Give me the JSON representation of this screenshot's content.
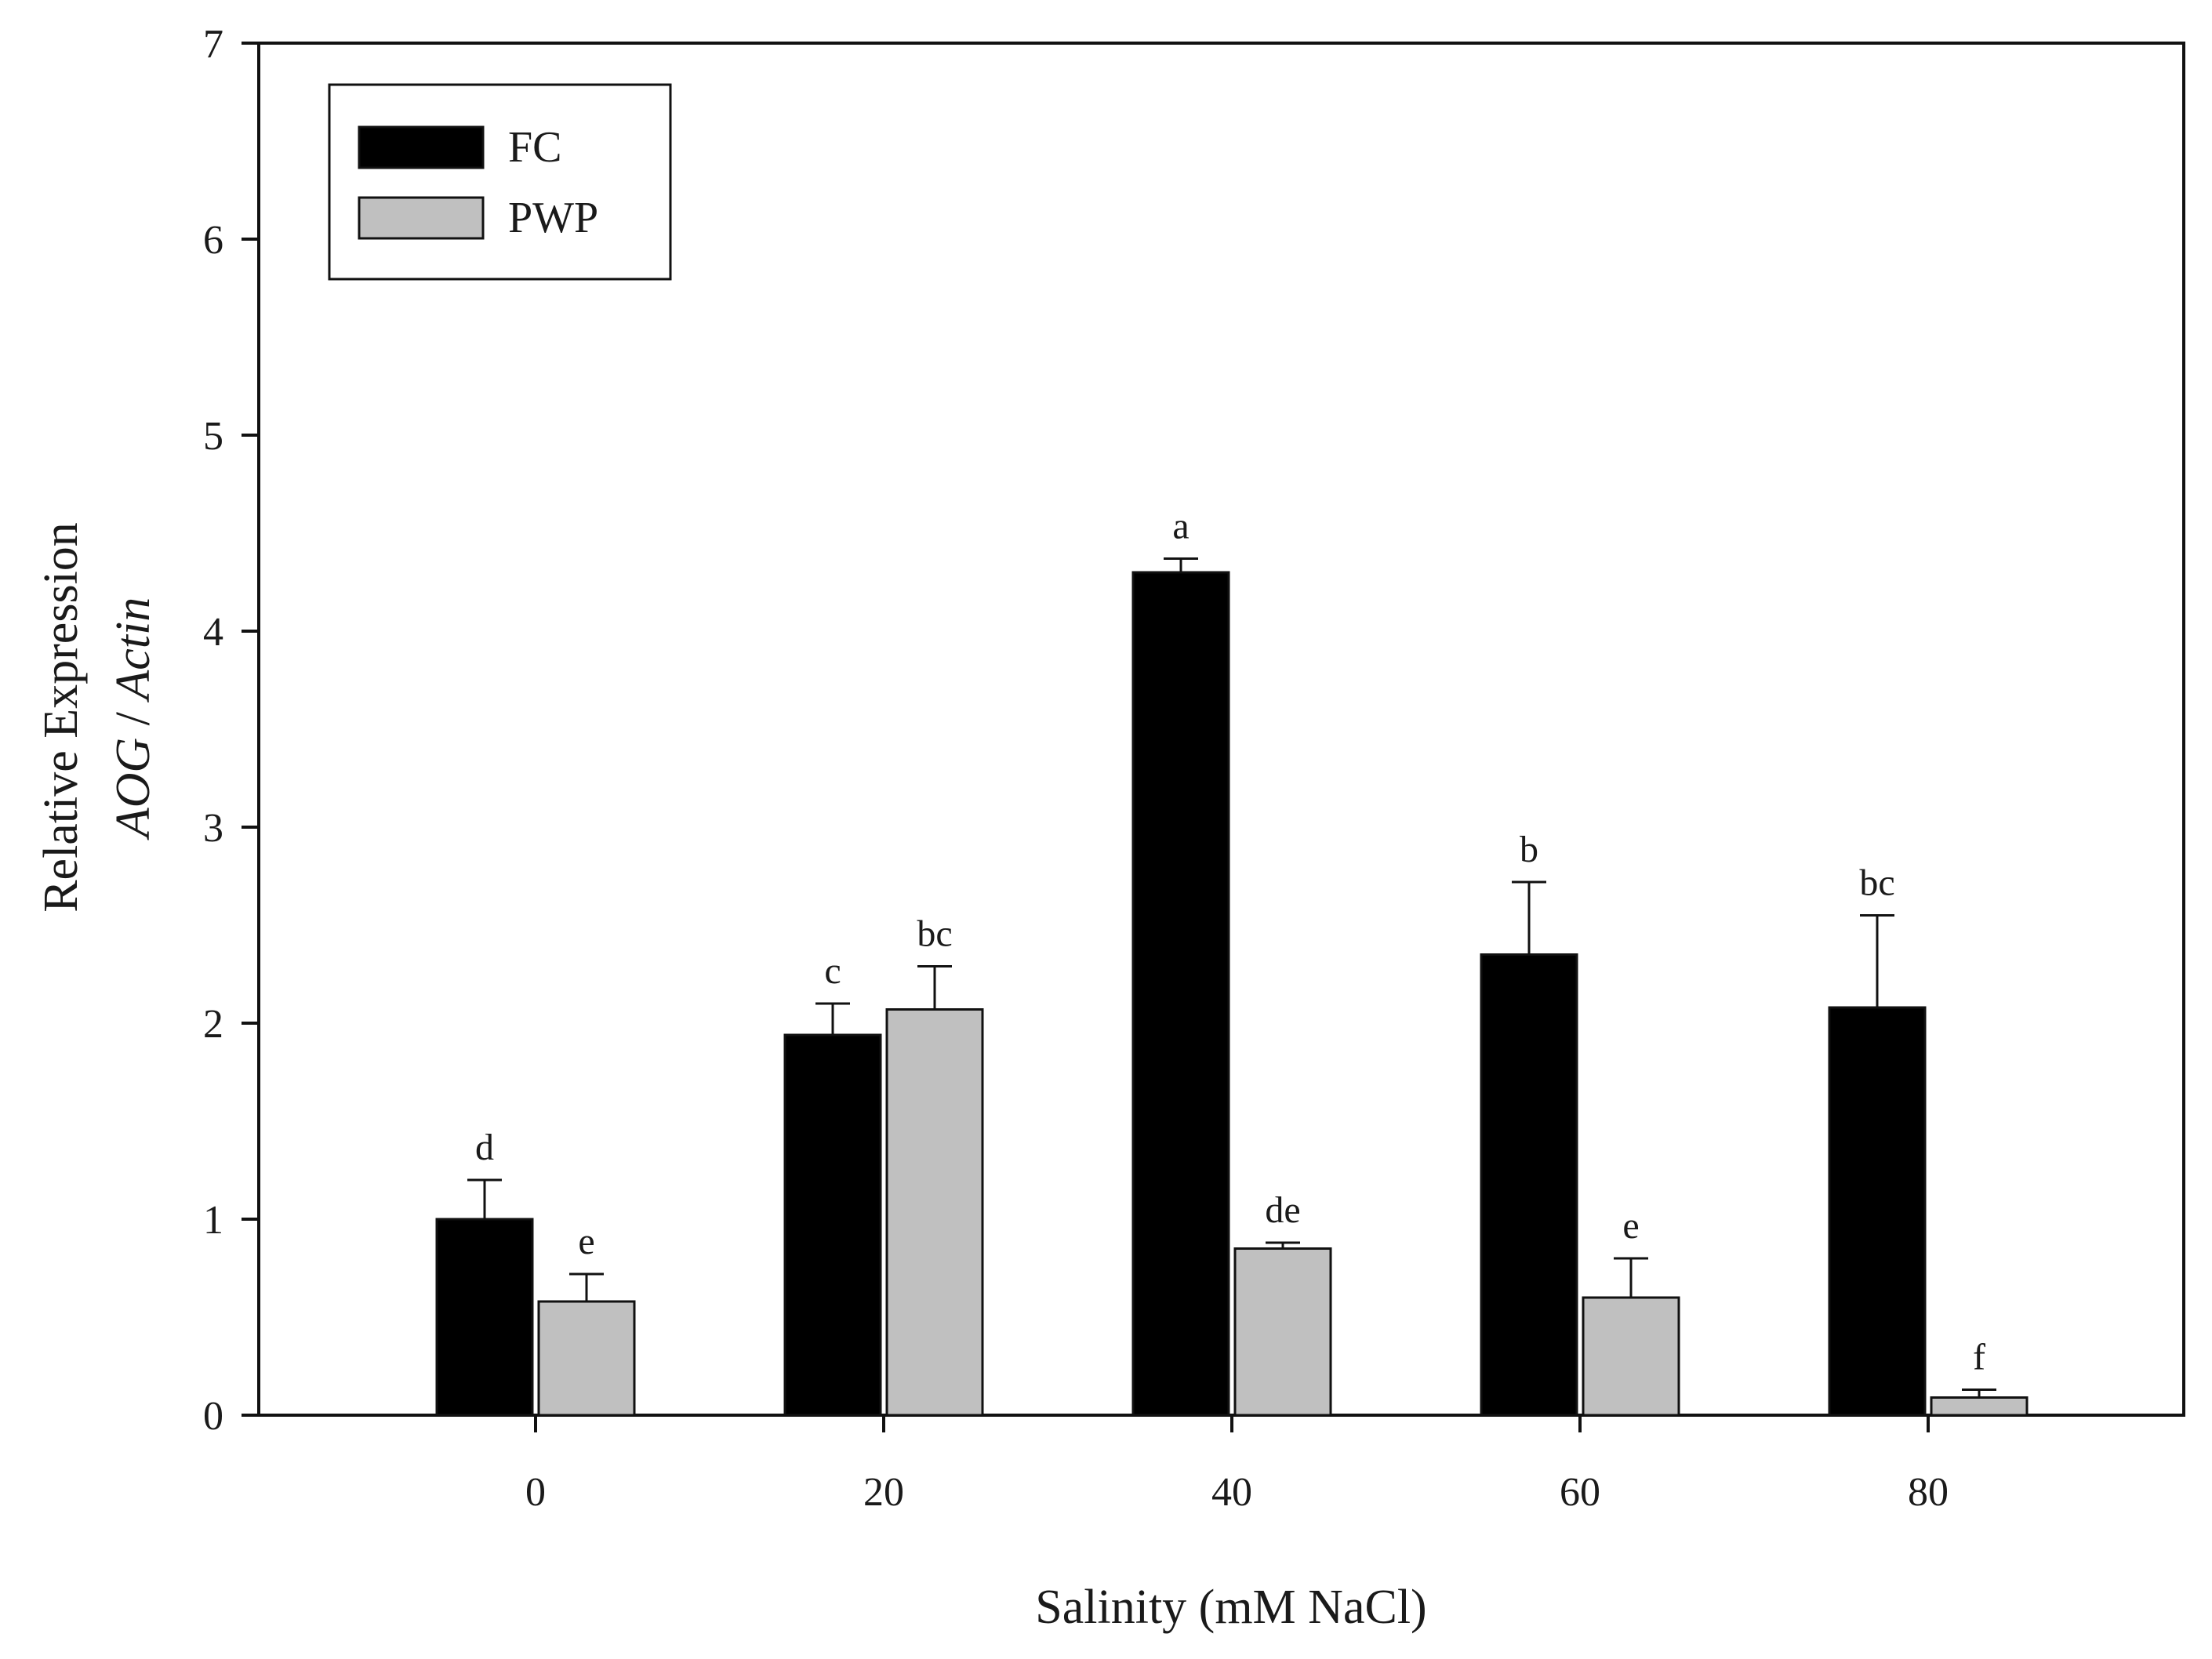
{
  "chart_data": {
    "type": "bar",
    "title": "",
    "xlabel": "Salinity (mM NaCl)",
    "ylabel": {
      "line1": "Relative Expression",
      "line2_italic_a": "AOG",
      "line2_sep": " / ",
      "line2_italic_b": "Actin"
    },
    "categories": [
      "0",
      "20",
      "40",
      "60",
      "80"
    ],
    "ylim": [
      0,
      7
    ],
    "yticks": [
      "0",
      "1",
      "2",
      "3",
      "4",
      "5",
      "6",
      "7"
    ],
    "grid": false,
    "legend_position": "top-left",
    "series": [
      {
        "name": "FC",
        "color": "#000000",
        "values": [
          1.0,
          1.94,
          4.3,
          2.35,
          2.08
        ],
        "errors": [
          0.2,
          0.16,
          0.07,
          0.37,
          0.47
        ],
        "labels": [
          "d",
          "c",
          "a",
          "b",
          "bc"
        ]
      },
      {
        "name": "PWP",
        "color": "#c0c0c0",
        "values": [
          0.58,
          2.07,
          0.85,
          0.6,
          0.09
        ],
        "errors": [
          0.14,
          0.22,
          0.03,
          0.2,
          0.04
        ],
        "labels": [
          "e",
          "bc",
          "de",
          "e",
          "f"
        ]
      }
    ]
  }
}
